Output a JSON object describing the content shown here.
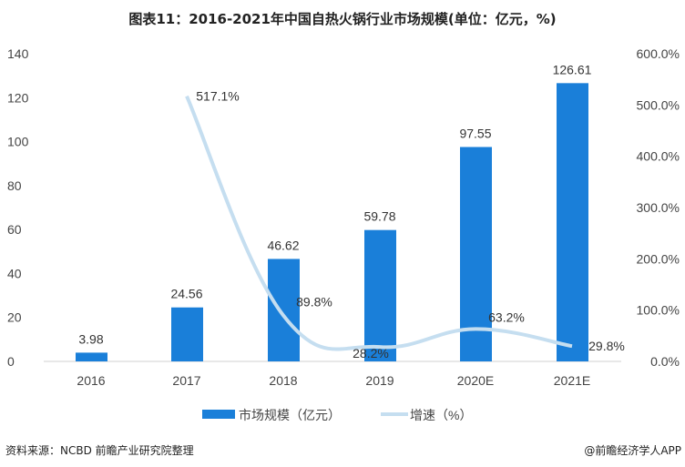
{
  "title": "图表11：2016-2021年中国自热火锅行业市场规模(单位：亿元，%)",
  "source": "资料来源：NCBD 前瞻产业研究院整理",
  "credit": "@前瞻经济学人APP",
  "chart_data": {
    "type": "bar+line",
    "categories": [
      "2016",
      "2017",
      "2018",
      "2019",
      "2020E",
      "2021E"
    ],
    "series": [
      {
        "name": "市场规模（亿元）",
        "type": "bar",
        "axis": "left",
        "color": "#1a7fd9",
        "values": [
          3.98,
          24.56,
          46.62,
          59.78,
          97.55,
          126.61
        ],
        "labels": [
          "3.98",
          "24.56",
          "46.62",
          "59.78",
          "97.55",
          "126.61"
        ]
      },
      {
        "name": "增速（%）",
        "type": "line",
        "axis": "right",
        "color": "#c5def0",
        "values": [
          null,
          517.1,
          89.8,
          28.2,
          63.2,
          29.8
        ],
        "labels": [
          "",
          "517.1%",
          "89.8%",
          "28.2%",
          "63.2%",
          "29.8%"
        ]
      }
    ],
    "left_axis": {
      "ylim": [
        0,
        140
      ],
      "ticks": [
        "0",
        "20",
        "40",
        "60",
        "80",
        "100",
        "120",
        "140"
      ]
    },
    "right_axis": {
      "ylim": [
        0,
        600
      ],
      "ticks": [
        "0.0%",
        "100.0%",
        "200.0%",
        "300.0%",
        "400.0%",
        "500.0%",
        "600.0%"
      ]
    },
    "grid": false,
    "legend": "bottom"
  }
}
